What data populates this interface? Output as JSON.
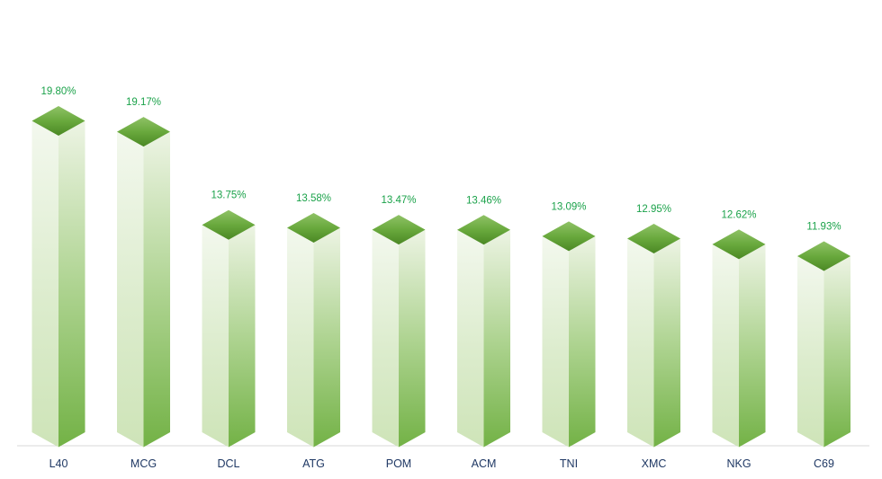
{
  "chart_data": {
    "type": "bar",
    "subtype": "3d-column",
    "title": "",
    "xlabel": "",
    "ylabel": "",
    "categories": [
      "L40",
      "MCG",
      "DCL",
      "ATG",
      "POM",
      "ACM",
      "TNI",
      "XMC",
      "NKG",
      "C69"
    ],
    "values": [
      19.8,
      19.17,
      13.75,
      13.58,
      13.47,
      13.46,
      13.09,
      12.95,
      12.62,
      11.93
    ],
    "value_labels": [
      "19.80%",
      "19.17%",
      "13.75%",
      "13.58%",
      "13.47%",
      "13.46%",
      "13.09%",
      "12.95%",
      "12.62%",
      "11.93%"
    ],
    "baseline_value": 0,
    "ylim": [
      0,
      22
    ],
    "grid": false,
    "legend": null,
    "colors": {
      "top_gradient": [
        "#8FC266",
        "#69A93D",
        "#4B8824"
      ],
      "left_face_gradient": [
        "#F3F8EE",
        "#DCECCD",
        "#CEE4B8"
      ],
      "right_face_gradient": [
        "#EDF4E4",
        "#AFD492",
        "#73B246"
      ],
      "value_label": "#1BA24A",
      "category_label": "#1F3864",
      "baseline": "#D8D8D8",
      "background": "#FFFFFF"
    }
  }
}
